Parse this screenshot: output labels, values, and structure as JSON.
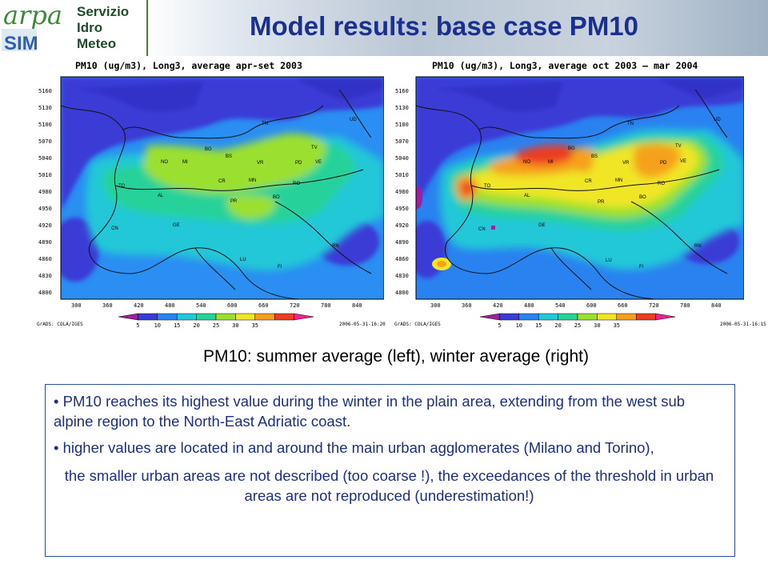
{
  "header": {
    "logo": {
      "word": "arpa",
      "badge": "SIM",
      "service_lines": [
        "Servizio",
        "Idro",
        "Meteo"
      ]
    },
    "title": "Model results: base case PM10"
  },
  "maps": [
    {
      "title": "PM10 (ug/m3), Long3, average apr-set 2003",
      "credit": "GrADS: COLA/IGES",
      "timestamp": "2006-05-31-16:20",
      "season": "summer"
    },
    {
      "title": "PM10 (ug/m3), Long3, average oct 2003 – mar 2004",
      "credit": "GrADS: COLA/IGES",
      "timestamp": "2006-05-31-16:15",
      "season": "winter"
    }
  ],
  "axes": {
    "y_ticks": [
      "5160",
      "5130",
      "5100",
      "5070",
      "5040",
      "5010",
      "4980",
      "4950",
      "4920",
      "4890",
      "4860",
      "4830",
      "4800"
    ],
    "x_ticks": [
      "300",
      "360",
      "420",
      "480",
      "540",
      "600",
      "660",
      "720",
      "780",
      "840"
    ]
  },
  "legend": {
    "levels": [
      "5",
      "10",
      "15",
      "20",
      "25",
      "30",
      "35"
    ],
    "colors": [
      "#a01fa0",
      "#3a3ad6",
      "#2a82f0",
      "#22c8d8",
      "#28d29a",
      "#9be02e",
      "#f0e626",
      "#f5a11d",
      "#ec3c22",
      "#f02090"
    ]
  },
  "place_labels": [
    "TN",
    "UD",
    "TV",
    "BG",
    "BS",
    "VE",
    "NO",
    "MI",
    "VR",
    "PD",
    "TO",
    "CR",
    "MN",
    "RO",
    "AL",
    "PR",
    "BO",
    "CN",
    "GE",
    "RN",
    "LU",
    "FI"
  ],
  "caption": "PM10: summer average (left), winter average (right)",
  "notes": [
    "• PM10 reaches  its  highest value during the winter in the  plain area, extending from the west sub alpine region to the North-East Adriatic coast.",
    "• higher values  are located in and around the main urban agglomerates (Milano and Torino),",
    "the smaller urban areas are not described (too coarse !), the exceedances of the threshold in urban areas are not reproduced (underestimation!)"
  ]
}
